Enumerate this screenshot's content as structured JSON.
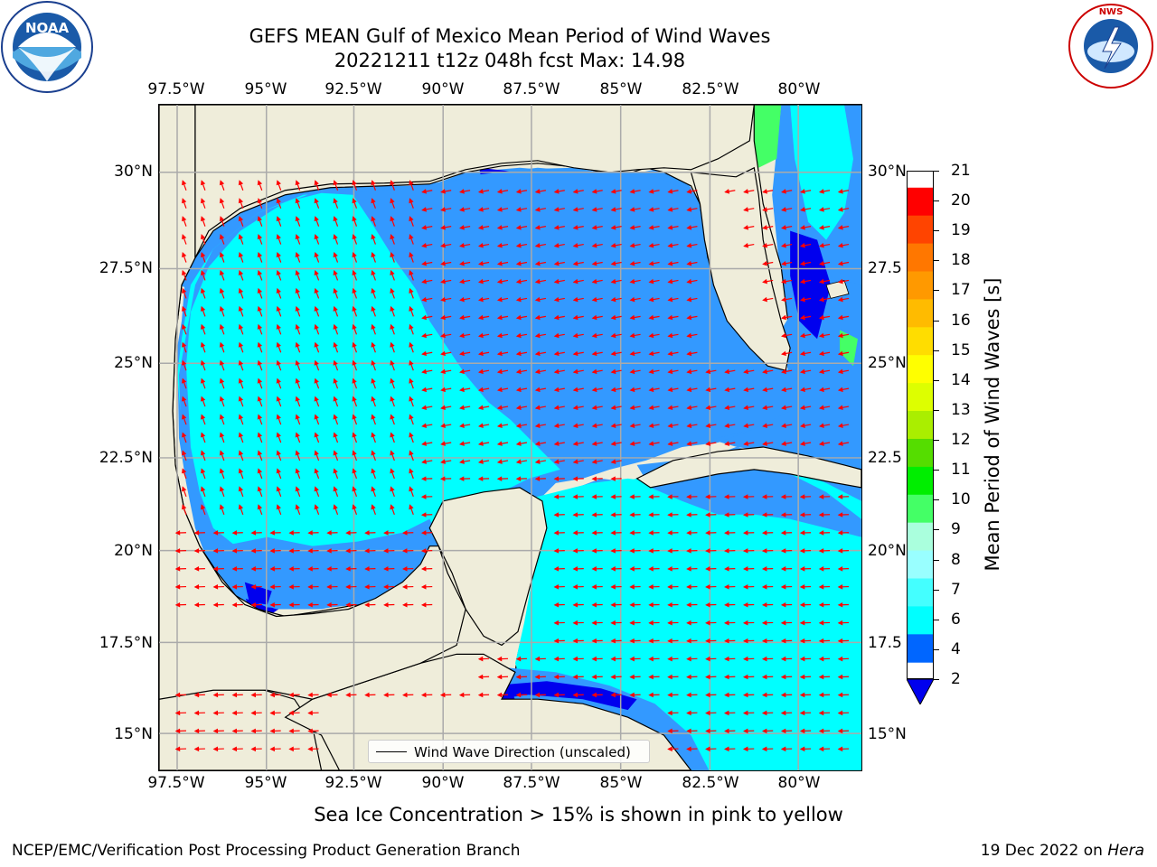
{
  "title": {
    "line1": "GEFS MEAN Gulf of Mexico Mean Period of Wind Waves",
    "line2": "20221211 t12z 048h fcst   Max: 14.98"
  },
  "axes": {
    "lon_labels": [
      "97.5°W",
      "95°W",
      "92.5°W",
      "90°W",
      "87.5°W",
      "85°W",
      "82.5°W",
      "80°W"
    ],
    "lat_labels_left": [
      "30°N",
      "27.5°N",
      "25°N",
      "22.5°N",
      "20°N",
      "17.5°N",
      "15°N"
    ],
    "lat_labels_right": [
      "30°N",
      "27.5",
      "25°N",
      "22.5",
      "20°N",
      "17.5",
      "15°N"
    ],
    "lon_range": [
      -98,
      -78.2
    ],
    "lat_range": [
      14,
      31.7
    ],
    "gridlines": true
  },
  "legend": {
    "label": "Wind Wave Direction (unscaled)"
  },
  "colorbar": {
    "label": "Mean Period of Wind Waves [s]",
    "ticks": [
      "2",
      "4",
      "6",
      "7",
      "8",
      "9",
      "10",
      "11",
      "12",
      "13",
      "14",
      "15",
      "16",
      "17",
      "18",
      "19",
      "20",
      "21"
    ],
    "colors": [
      "#0066ff",
      "#00ffff",
      "#44ffff",
      "#99ffff",
      "#aaffdd",
      "#44ff66",
      "#00ee00",
      "#55dd00",
      "#aaee00",
      "#ddff00",
      "#ffff00",
      "#ffdd00",
      "#ffbb00",
      "#ff9900",
      "#ff7700",
      "#ff4400",
      "#ff0000"
    ],
    "under_color": "#0000ee",
    "orientation": "vertical"
  },
  "chart_data": {
    "type": "heatmap",
    "title": "GEFS MEAN Gulf of Mexico Mean Period of Wind Waves",
    "subtitle": "20221211 t12z 048h fcst   Max: 14.98",
    "max_value": 14.98,
    "units": "s",
    "region": "Gulf of Mexico",
    "overlay": "Wind Wave Direction (unscaled)"
  },
  "caption": "Sea Ice Concentration > 15% is shown in pink to yellow",
  "footer": {
    "left": "NCEP/EMC/Verification Post Processing Product Generation Branch",
    "right_date": "19 Dec 2022 on",
    "right_host": "Hera"
  },
  "logos": {
    "left": "NOAA",
    "left_ring": "NATIONAL OCEANIC AND ATMOSPHERIC ADMINISTRATION · U.S. DEPARTMENT OF COMMERCE",
    "right_ring": "NATIONAL WEATHER SERVICE"
  }
}
